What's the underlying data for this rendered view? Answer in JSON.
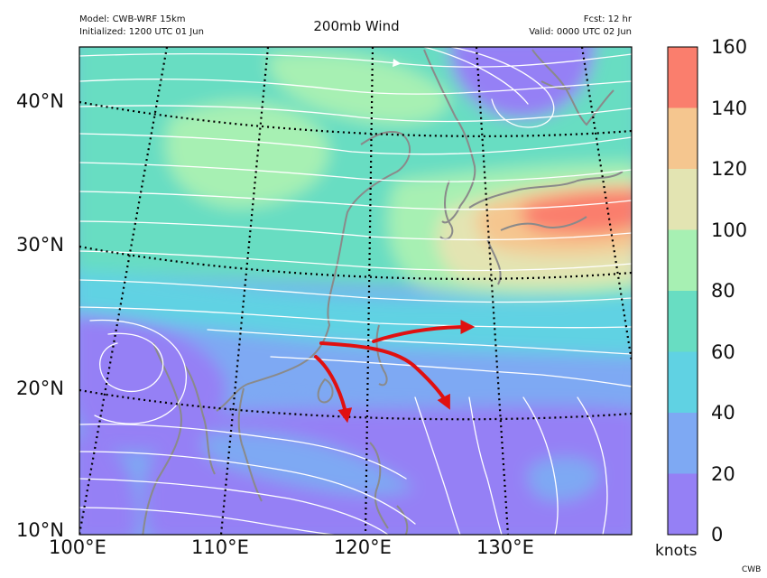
{
  "header": {
    "model": "Model: CWB-WRF 15km",
    "initialized": "Initialized: 1200 UTC 01 Jun",
    "title": "200mb Wind",
    "fcst": "Fcst: 12 hr",
    "valid": "Valid: 0000 UTC 02 Jun"
  },
  "map": {
    "lat_labels": [
      "10°N",
      "20°N",
      "30°N",
      "40°N"
    ],
    "lon_labels": [
      "100°E",
      "110°E",
      "120°E",
      "130°E"
    ],
    "colors": {
      "ocean": "#8d82f0",
      "coastline": "#8a8a8a",
      "gridline": "#000000",
      "streamline": "#ffffff",
      "arrows": "#e01010"
    }
  },
  "colorbar": {
    "units": "knots",
    "ticks": [
      "0",
      "20",
      "40",
      "60",
      "80",
      "100",
      "120",
      "140",
      "160"
    ],
    "bins": [
      {
        "min": 0,
        "max": 20,
        "color": "#9580f5"
      },
      {
        "min": 20,
        "max": 40,
        "color": "#7ea9f3"
      },
      {
        "min": 40,
        "max": 60,
        "color": "#60d2e3"
      },
      {
        "min": 60,
        "max": 80,
        "color": "#68ddc2"
      },
      {
        "min": 80,
        "max": 100,
        "color": "#a7f0b3"
      },
      {
        "min": 100,
        "max": 120,
        "color": "#e3e4b2"
      },
      {
        "min": 120,
        "max": 140,
        "color": "#f5c68f"
      },
      {
        "min": 140,
        "max": 160,
        "color": "#fa7e6d"
      }
    ]
  },
  "credit": "CWB"
}
